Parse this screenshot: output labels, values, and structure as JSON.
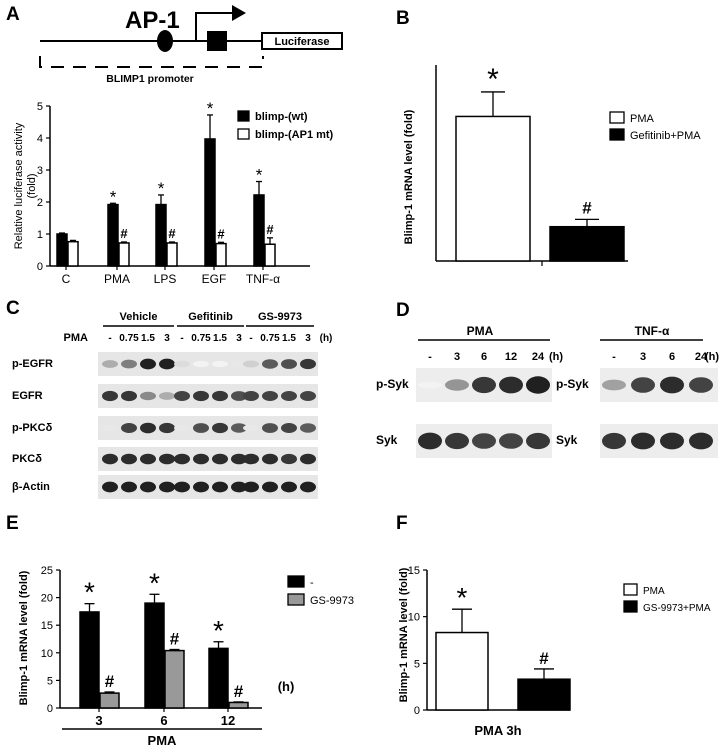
{
  "panel_labels": {
    "a": "A",
    "b": "B",
    "c": "C",
    "d": "D",
    "e": "E",
    "f": "F"
  },
  "panel_a_diagram": {
    "site": "AP-1",
    "reporter": "Luciferase",
    "promoter": "BLIMP1 promoter"
  },
  "chart_data": [
    {
      "panel": "A",
      "type": "bar",
      "ylabel": "Relative luciferase activity\n(fold)",
      "ylim": [
        0,
        5
      ],
      "yticks": [
        "0",
        "1",
        "2",
        "3",
        "4",
        "5"
      ],
      "categories": [
        "C",
        "PMA",
        "LPS",
        "EGF",
        "TNF-α"
      ],
      "series": [
        {
          "name": "blimp-(wt)",
          "color": "#000000",
          "values": [
            1.0,
            1.92,
            1.92,
            3.97,
            2.22
          ],
          "errors": [
            0.03,
            0.04,
            0.3,
            0.75,
            0.42
          ],
          "marks": [
            "",
            "*",
            "*",
            "*",
            "*"
          ]
        },
        {
          "name": "blimp-(AP1 mt)",
          "color": "#ffffff",
          "values": [
            0.76,
            0.72,
            0.72,
            0.7,
            0.68
          ],
          "errors": [
            0.04,
            0.03,
            0.03,
            0.04,
            0.2
          ],
          "marks": [
            "",
            "#",
            "#",
            "#",
            "#"
          ]
        }
      ],
      "legend_position": "top-right"
    },
    {
      "panel": "B",
      "type": "bar",
      "ylabel": "Blimp-1 mRNA level  (fold)",
      "ylim": [
        0,
        8
      ],
      "yticks": [],
      "categories": [
        ""
      ],
      "series": [
        {
          "name": "PMA",
          "color": "#ffffff",
          "values": [
            5.9
          ],
          "errors": [
            1.0
          ],
          "marks": [
            "*"
          ]
        },
        {
          "name": "Gefitinib+PMA",
          "color": "#000000",
          "values": [
            1.4
          ],
          "errors": [
            0.3
          ],
          "marks": [
            "#"
          ]
        }
      ],
      "legend_position": "top-right"
    },
    {
      "panel": "E",
      "type": "bar",
      "ylabel": "Blimp-1 mRNA level  (fold)",
      "xlabel": "PMA",
      "xunit": "(h)",
      "ylim": [
        0,
        25
      ],
      "yticks": [
        "0",
        "5",
        "10",
        "15",
        "20",
        "25"
      ],
      "categories": [
        "3",
        "6",
        "12"
      ],
      "series": [
        {
          "name": "-",
          "color": "#000000",
          "values": [
            17.4,
            19.0,
            10.8
          ],
          "errors": [
            1.5,
            1.6,
            1.2
          ],
          "marks": [
            "*",
            "*",
            "*"
          ]
        },
        {
          "name": "GS-9973",
          "color": "#999999",
          "values": [
            2.7,
            10.4,
            1.0
          ],
          "errors": [
            0.2,
            0.2,
            0.1
          ],
          "marks": [
            "#",
            "#",
            "#"
          ]
        }
      ],
      "legend_position": "top-right"
    },
    {
      "panel": "F",
      "type": "bar",
      "ylabel": "Blimp-1 mRNA level  (fold)",
      "xlabel": "PMA 3h",
      "ylim": [
        0,
        15
      ],
      "yticks": [
        "0",
        "5",
        "10",
        "15"
      ],
      "categories": [
        ""
      ],
      "series": [
        {
          "name": "PMA",
          "color": "#ffffff",
          "values": [
            8.3
          ],
          "errors": [
            2.5
          ],
          "marks": [
            "*"
          ]
        },
        {
          "name": "GS-9973+PMA",
          "color": "#000000",
          "values": [
            3.3
          ],
          "errors": [
            1.1
          ],
          "marks": [
            "#"
          ]
        }
      ],
      "legend_position": "top-right"
    }
  ],
  "blot_c": {
    "groups": [
      "Vehicle",
      "Gefitinib",
      "GS-9973"
    ],
    "row_label": "PMA",
    "times": [
      "-",
      "0.75",
      "1.5",
      "3",
      "-",
      "0.75",
      "1.5",
      "3",
      "-",
      "0.75",
      "1.5",
      "3"
    ],
    "unit": "(h)",
    "rows": [
      {
        "label": "p-EGFR",
        "intensity": [
          0.35,
          0.55,
          0.95,
          0.95,
          0.15,
          0.05,
          0.05,
          0.1,
          0.2,
          0.7,
          0.75,
          0.85
        ]
      },
      {
        "label": "EGFR",
        "intensity": [
          0.85,
          0.85,
          0.5,
          0.35,
          0.8,
          0.85,
          0.85,
          0.75,
          0.8,
          0.8,
          0.8,
          0.8
        ]
      },
      {
        "label": "p-PKCδ",
        "intensity": [
          0.1,
          0.8,
          0.9,
          0.85,
          0.1,
          0.75,
          0.85,
          0.7,
          0.1,
          0.75,
          0.8,
          0.7
        ]
      },
      {
        "label": "PKCδ",
        "intensity": [
          0.9,
          0.9,
          0.9,
          0.9,
          0.9,
          0.9,
          0.9,
          0.9,
          0.9,
          0.9,
          0.85,
          0.9
        ]
      },
      {
        "label": "β-Actin",
        "intensity": [
          0.95,
          0.95,
          0.95,
          0.95,
          0.95,
          0.95,
          0.95,
          0.95,
          0.95,
          0.95,
          0.95,
          0.95
        ]
      }
    ]
  },
  "blot_d": {
    "unit": "(h)",
    "left": {
      "title": "PMA",
      "times": [
        "-",
        "3",
        "6",
        "12",
        "24"
      ],
      "rows": [
        {
          "label": "p-Syk",
          "intensity": [
            0.05,
            0.45,
            0.85,
            0.9,
            0.95
          ]
        },
        {
          "label": "Syk",
          "intensity": [
            0.9,
            0.85,
            0.8,
            0.8,
            0.85
          ]
        }
      ]
    },
    "right": {
      "title": "TNF-α",
      "times": [
        "-",
        "3",
        "6",
        "24"
      ],
      "rows": [
        {
          "label": "p-Syk",
          "intensity": [
            0.4,
            0.8,
            0.9,
            0.8
          ]
        },
        {
          "label": "Syk",
          "intensity": [
            0.85,
            0.9,
            0.9,
            0.9
          ]
        }
      ]
    }
  }
}
